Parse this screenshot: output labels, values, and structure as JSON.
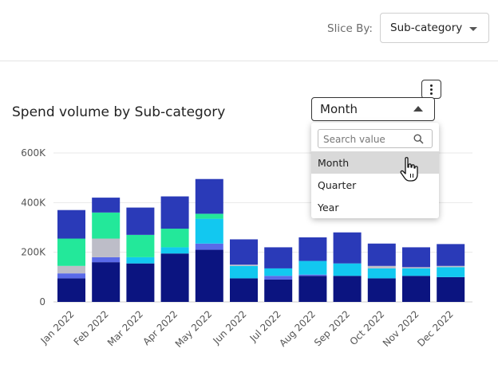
{
  "header": {
    "slice_label": "Slice By:",
    "slice_value": "Sub-category"
  },
  "chart_title": "Spend volume by Sub-category",
  "period_select": {
    "value": "Month",
    "options": [
      "Month",
      "Quarter",
      "Year"
    ],
    "search_placeholder": "Search value",
    "highlighted": "Month"
  },
  "colors": {
    "navy": "#0b1480",
    "blue": "#2a3ab8",
    "periwinkle": "#5a6ae8",
    "silver": "#bdbdc8",
    "mint": "#23e89a",
    "cyan": "#12c8f0",
    "sky": "#18dcf2"
  },
  "chart_data": {
    "type": "bar",
    "stacked": true,
    "categories": [
      "Jan 2022",
      "Feb 2022",
      "Mar 2022",
      "Apr 2022",
      "May 2022",
      "Jun 2022",
      "Jul 2022",
      "Aug 2022",
      "Sep 2022",
      "Oct 2022",
      "Nov 2022",
      "Dec 2022"
    ],
    "series": [
      {
        "color": "#0b1480",
        "values": [
          95,
          160,
          155,
          195,
          210,
          95,
          90,
          105,
          105,
          95,
          105,
          100
        ]
      },
      {
        "color": "#5a6ae8",
        "values": [
          20,
          20,
          0,
          0,
          25,
          0,
          15,
          5,
          0,
          0,
          0,
          0
        ]
      },
      {
        "color": "#12c8f0",
        "values": [
          0,
          0,
          25,
          25,
          100,
          50,
          30,
          55,
          50,
          40,
          30,
          40
        ]
      },
      {
        "color": "#bdbdc8",
        "values": [
          30,
          75,
          0,
          0,
          0,
          5,
          0,
          0,
          0,
          10,
          5,
          5
        ]
      },
      {
        "color": "#23e89a",
        "values": [
          110,
          105,
          90,
          75,
          20,
          0,
          0,
          0,
          0,
          0,
          0,
          0
        ]
      },
      {
        "color": "#2a3ab8",
        "values": [
          115,
          60,
          110,
          130,
          140,
          102,
          85,
          95,
          125,
          90,
          80,
          88
        ]
      }
    ],
    "ytick_labels": [
      "0",
      "200K",
      "400K",
      "600K"
    ],
    "ylim": [
      0,
      600
    ],
    "grid": true
  }
}
